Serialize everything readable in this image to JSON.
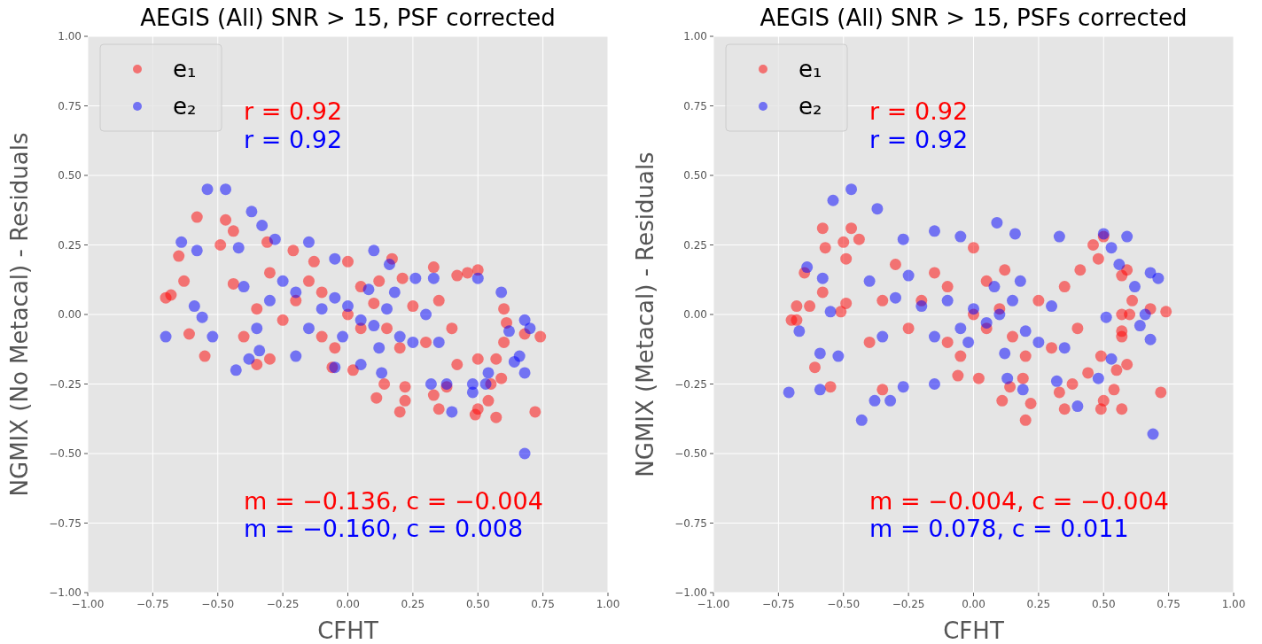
{
  "chart_data": [
    {
      "type": "scatter",
      "title": "AEGIS (All) SNR > 15, PSF corrected",
      "xlabel": "CFHT",
      "ylabel": "NGMIX (No Metacal) - Residuals",
      "xlim": [
        -1,
        1
      ],
      "ylim": [
        -1,
        1
      ],
      "xticks": [
        {
          "value": -1,
          "label": "−1.00"
        },
        {
          "value": -0.75,
          "label": "−0.75"
        },
        {
          "value": -0.5,
          "label": "−0.50"
        },
        {
          "value": -0.25,
          "label": "−0.25"
        },
        {
          "value": 0,
          "label": "0.00"
        },
        {
          "value": 0.25,
          "label": "0.25"
        },
        {
          "value": 0.5,
          "label": "0.50"
        },
        {
          "value": 0.75,
          "label": "0.75"
        },
        {
          "value": 1,
          "label": "1.00"
        }
      ],
      "yticks": [
        {
          "value": -1,
          "label": "−1.00"
        },
        {
          "value": -0.75,
          "label": "−0.75"
        },
        {
          "value": -0.5,
          "label": "−0.50"
        },
        {
          "value": -0.25,
          "label": "−0.25"
        },
        {
          "value": 0,
          "label": "0.00"
        },
        {
          "value": 0.25,
          "label": "0.25"
        },
        {
          "value": 0.5,
          "label": "0.50"
        },
        {
          "value": 0.75,
          "label": "0.75"
        },
        {
          "value": 1,
          "label": "1.00"
        }
      ],
      "grid": true,
      "legend": "top left",
      "marker": "circle",
      "annotations": [
        "r = 0.92",
        "r = 0.92",
        "m = −0.136, c = −0.004",
        "m = −0.160, c = 0.008"
      ],
      "series": [
        {
          "name": "e₁",
          "color": "#ff0000",
          "x": [
            -0.58,
            -0.47,
            -0.44,
            -0.65,
            -0.63,
            -0.7,
            -0.68,
            -0.55,
            -0.61,
            -0.35,
            -0.3,
            -0.44,
            -0.49,
            -0.31,
            0.17,
            0.33,
            0.5,
            0.46,
            0.42,
            0.6,
            0.61,
            0.74,
            0.68,
            0.6,
            0.59,
            0.54,
            0.5,
            0.49,
            0.57,
            0.72,
            0.35,
            0.33,
            0.22,
            0.2,
            0.11,
            0.14,
            0.22,
            0.38,
            0.55,
            0.5,
            0.57,
            -0.06,
            0.02,
            0.42,
            -0.21,
            -0.13,
            0.0,
            0.21,
            -0.2,
            -0.1,
            0.05,
            0.15,
            0.25,
            0.3,
            -0.05,
            0.1,
            -0.25,
            0,
            0.2,
            -0.15,
            0.35,
            0.4,
            -0.35,
            -0.4,
            -0.3,
            0.05,
            -0.1,
            0.12
          ],
          "values": [
            0.35,
            0.34,
            0.3,
            0.21,
            0.12,
            0.06,
            0.07,
            -0.15,
            -0.07,
            -0.18,
            -0.16,
            0.11,
            0.25,
            0.26,
            0.2,
            0.17,
            0.16,
            0.15,
            0.14,
            0.02,
            -0.03,
            -0.08,
            -0.07,
            -0.1,
            -0.23,
            -0.31,
            -0.34,
            -0.36,
            -0.37,
            -0.35,
            -0.34,
            -0.29,
            -0.31,
            -0.35,
            -0.3,
            -0.25,
            -0.26,
            -0.26,
            -0.25,
            -0.16,
            -0.16,
            -0.19,
            -0.2,
            -0.18,
            0.23,
            0.19,
            0.19,
            0.13,
            0.05,
            -0.08,
            0.1,
            -0.05,
            0.03,
            -0.1,
            -0.12,
            0.04,
            -0.02,
            0,
            -0.12,
            0.12,
            0.05,
            -0.05,
            0.02,
            -0.08,
            0.15,
            -0.05,
            0.08,
            0.12
          ]
        },
        {
          "name": "e₂",
          "color": "#0000ff",
          "x": [
            -0.54,
            -0.47,
            -0.37,
            -0.33,
            -0.64,
            -0.58,
            -0.42,
            -0.28,
            -0.15,
            0.1,
            -0.7,
            -0.59,
            -0.43,
            -0.38,
            0.68,
            0.7,
            0.66,
            0.68,
            0.68,
            0.64,
            0.4,
            0.48,
            0.48,
            0.53,
            0.54,
            0.59,
            0.5,
            0.33,
            0.26,
            0.16,
            -0.05,
            0.13,
            0.32,
            0.38,
            0.62,
            0.05,
            -0.05,
            -0.2,
            -0.34,
            -0.52,
            -0.56,
            -0.2,
            -0.1,
            0,
            0.05,
            0.1,
            0.15,
            -0.05,
            0.2,
            -0.15,
            0.25,
            -0.3,
            0.3,
            -0.25,
            0.08,
            -0.02,
            0.18,
            -0.35,
            0.35,
            -0.4,
            0.12
          ],
          "values": [
            0.45,
            0.45,
            0.37,
            0.32,
            0.26,
            0.23,
            0.24,
            0.27,
            0.26,
            0.23,
            -0.08,
            0.03,
            -0.2,
            -0.16,
            -0.02,
            -0.05,
            -0.15,
            -0.21,
            -0.5,
            -0.17,
            -0.35,
            -0.28,
            -0.25,
            -0.25,
            -0.21,
            0.08,
            0.13,
            0.13,
            0.13,
            0.18,
            0.2,
            -0.21,
            -0.25,
            -0.25,
            -0.06,
            -0.18,
            -0.19,
            -0.15,
            -0.13,
            -0.08,
            -0.01,
            0.08,
            0.02,
            0.03,
            -0.02,
            -0.04,
            0.02,
            0.06,
            -0.08,
            -0.05,
            -0.1,
            0.05,
            0.0,
            0.12,
            0.09,
            -0.08,
            0.08,
            -0.05,
            -0.1,
            0.1,
            -0.12
          ]
        }
      ]
    },
    {
      "type": "scatter",
      "title": "AEGIS (All) SNR > 15, PSFs corrected",
      "xlabel": "CFHT",
      "ylabel": "NGMIX (Metacal) - Residuals",
      "xlim": [
        -1,
        1
      ],
      "ylim": [
        -1,
        1
      ],
      "xticks": [
        {
          "value": -1,
          "label": "−1.00"
        },
        {
          "value": -0.75,
          "label": "−0.75"
        },
        {
          "value": -0.5,
          "label": "−0.50"
        },
        {
          "value": -0.25,
          "label": "−0.25"
        },
        {
          "value": 0,
          "label": "0.00"
        },
        {
          "value": 0.25,
          "label": "0.25"
        },
        {
          "value": 0.5,
          "label": "0.50"
        },
        {
          "value": 0.75,
          "label": "0.75"
        },
        {
          "value": 1,
          "label": "1.00"
        }
      ],
      "yticks": [
        {
          "value": -1,
          "label": "−1.00"
        },
        {
          "value": -0.75,
          "label": "−0.75"
        },
        {
          "value": -0.5,
          "label": "−0.50"
        },
        {
          "value": -0.25,
          "label": "−0.25"
        },
        {
          "value": 0,
          "label": "0.00"
        },
        {
          "value": 0.25,
          "label": "0.25"
        },
        {
          "value": 0.5,
          "label": "0.50"
        },
        {
          "value": 0.75,
          "label": "0.75"
        },
        {
          "value": 1,
          "label": "1.00"
        }
      ],
      "grid": true,
      "legend": "top left",
      "marker": "circle",
      "annotations": [
        "r = 0.92",
        "r = 0.92",
        "m = −0.004, c = −0.004",
        "m = 0.078, c = 0.011"
      ],
      "series": [
        {
          "name": "e₁",
          "color": "#ff0000",
          "x": [
            -0.58,
            -0.47,
            -0.44,
            -0.57,
            -0.5,
            -0.49,
            -0.65,
            -0.68,
            -0.7,
            -0.68,
            -0.63,
            -0.61,
            -0.55,
            -0.35,
            0.0,
            0.46,
            0.5,
            0.48,
            0.57,
            0.59,
            0.61,
            0.68,
            0.74,
            0.57,
            0.6,
            0.57,
            0.57,
            0.59,
            0.55,
            0.54,
            0.72,
            0.5,
            0.49,
            0.57,
            0.35,
            0.33,
            0.38,
            0.2,
            0.22,
            0.11,
            0.14,
            0.19,
            0.02,
            -0.06,
            0.44,
            0.49,
            -0.51,
            -0.49,
            -0.58,
            0.41,
            -0.2,
            -0.1,
            0.05,
            0.15,
            0.25,
            0.3,
            -0.05,
            0.1,
            -0.25,
            0,
            0.2,
            -0.15,
            0.35,
            0.4,
            -0.35,
            -0.4,
            -0.3,
            0.05,
            -0.1,
            0.12
          ],
          "values": [
            0.31,
            0.31,
            0.27,
            0.24,
            0.26,
            0.2,
            0.15,
            0.03,
            -0.02,
            -0.02,
            0.03,
            -0.19,
            -0.26,
            -0.27,
            0.24,
            0.25,
            0.28,
            0.2,
            0.14,
            0.16,
            0.05,
            0.02,
            0.01,
            0.0,
            0.0,
            -0.06,
            -0.08,
            -0.18,
            -0.2,
            -0.27,
            -0.28,
            -0.31,
            -0.34,
            -0.34,
            -0.34,
            -0.28,
            -0.25,
            -0.38,
            -0.32,
            -0.31,
            -0.26,
            -0.23,
            -0.23,
            -0.22,
            -0.21,
            -0.15,
            0.01,
            0.04,
            0.08,
            0.16,
            0.05,
            -0.1,
            0.12,
            -0.08,
            0.05,
            -0.12,
            -0.15,
            0.02,
            -0.05,
            0,
            -0.15,
            0.15,
            0.1,
            -0.05,
            0.05,
            -0.1,
            0.18,
            -0.05,
            0.1,
            0.16
          ]
        },
        {
          "name": "e₂",
          "color": "#0000ff",
          "x": [
            -0.47,
            -0.54,
            -0.37,
            0.09,
            0.16,
            -0.05,
            -0.15,
            -0.27,
            0.5,
            0.59,
            0.53,
            0.33,
            -0.64,
            -0.58,
            -0.67,
            -0.71,
            -0.59,
            -0.43,
            -0.38,
            -0.32,
            -0.27,
            -0.15,
            0.68,
            0.71,
            0.66,
            0.64,
            0.68,
            0.69,
            0.4,
            0.48,
            0.32,
            0.19,
            0.13,
            0.53,
            0.51,
            0.62,
            0.56,
            -0.55,
            -0.59,
            -0.52,
            -0.2,
            -0.1,
            0,
            0.05,
            0.1,
            0.15,
            -0.05,
            0.2,
            -0.15,
            0.25,
            -0.3,
            0.3,
            -0.25,
            0.08,
            -0.02,
            0.18,
            -0.35,
            0.35,
            -0.4,
            0.12
          ],
          "values": [
            0.45,
            0.41,
            0.38,
            0.33,
            0.29,
            0.28,
            0.3,
            0.27,
            0.29,
            0.28,
            0.24,
            0.28,
            0.17,
            0.13,
            -0.06,
            -0.28,
            -0.27,
            -0.38,
            -0.31,
            -0.31,
            -0.26,
            -0.25,
            0.15,
            0.13,
            0.0,
            -0.04,
            -0.09,
            -0.43,
            -0.33,
            -0.23,
            -0.24,
            -0.27,
            -0.23,
            -0.16,
            -0.01,
            0.1,
            0.18,
            0.01,
            -0.14,
            -0.15,
            0.03,
            0.05,
            0.02,
            -0.03,
            0.0,
            0.05,
            -0.05,
            -0.06,
            -0.08,
            -0.1,
            0.06,
            0.03,
            0.14,
            0.1,
            -0.1,
            0.12,
            -0.08,
            -0.12,
            0.12,
            -0.14
          ]
        }
      ]
    }
  ]
}
